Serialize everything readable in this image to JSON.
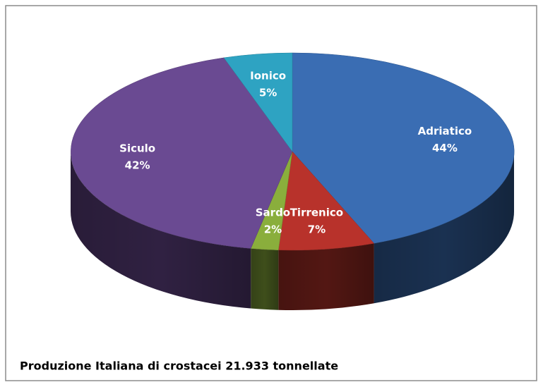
{
  "chart_data": {
    "type": "pie3d",
    "title": "Produzione Italiana di crostacei 21.933  tonnellate",
    "categories": [
      "Adriatico",
      "Tirrenico",
      "Sardo",
      "Siculo",
      "Ionico"
    ],
    "values": [
      44,
      7,
      2,
      42,
      5
    ],
    "value_labels": [
      "44%",
      "7%",
      "2%",
      "42%",
      "5%"
    ],
    "colors": [
      "#3a6db3",
      "#b8322b",
      "#8aae3c",
      "#6a4a92",
      "#2ea3c2"
    ]
  }
}
